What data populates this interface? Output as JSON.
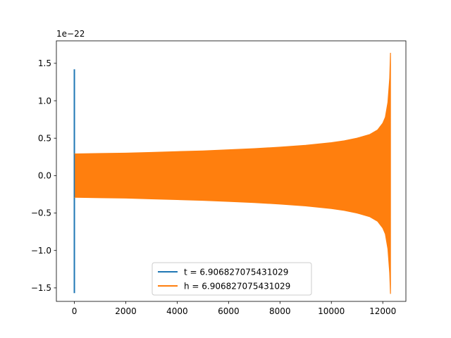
{
  "chart_data": {
    "type": "line",
    "title": "",
    "xlabel": "",
    "ylabel": "",
    "xlim": [
      -700,
      12900
    ],
    "ylim": [
      -1.68,
      1.8
    ],
    "y_offset_label": "1e−22",
    "x_ticks": [
      0,
      2000,
      4000,
      6000,
      8000,
      10000,
      12000
    ],
    "x_tick_labels": [
      "0",
      "2000",
      "4000",
      "6000",
      "8000",
      "10000",
      "12000"
    ],
    "y_ticks": [
      -1.5,
      -1.0,
      -0.5,
      0.0,
      0.5,
      1.0,
      1.5
    ],
    "y_tick_labels": [
      "−1.5",
      "−1.0",
      "−0.5",
      "0.0",
      "0.5",
      "1.0",
      "1.5"
    ],
    "grid": false,
    "legend_position": "lower-center",
    "series": [
      {
        "name": "t = 6.906827075431029",
        "color": "#1f77b4",
        "style": "spike",
        "x": [
          0
        ],
        "y_min": [
          -1.57
        ],
        "y_max": [
          1.42
        ]
      },
      {
        "name": "h = 6.906827075431029",
        "color": "#ff7f0e",
        "style": "chirp-envelope",
        "x": [
          0,
          1000,
          2000,
          3000,
          4000,
          5000,
          6000,
          7000,
          8000,
          9000,
          10000,
          10500,
          11000,
          11500,
          11800,
          12000,
          12100,
          12200,
          12270,
          12300
        ],
        "y_upper": [
          0.29,
          0.295,
          0.3,
          0.31,
          0.32,
          0.33,
          0.345,
          0.36,
          0.38,
          0.405,
          0.44,
          0.465,
          0.5,
          0.55,
          0.61,
          0.7,
          0.78,
          0.98,
          1.3,
          1.64
        ],
        "y_lower": [
          -0.29,
          -0.295,
          -0.3,
          -0.31,
          -0.32,
          -0.33,
          -0.345,
          -0.36,
          -0.38,
          -0.405,
          -0.44,
          -0.465,
          -0.5,
          -0.55,
          -0.61,
          -0.7,
          -0.78,
          -0.98,
          -1.3,
          -1.58
        ]
      }
    ]
  }
}
